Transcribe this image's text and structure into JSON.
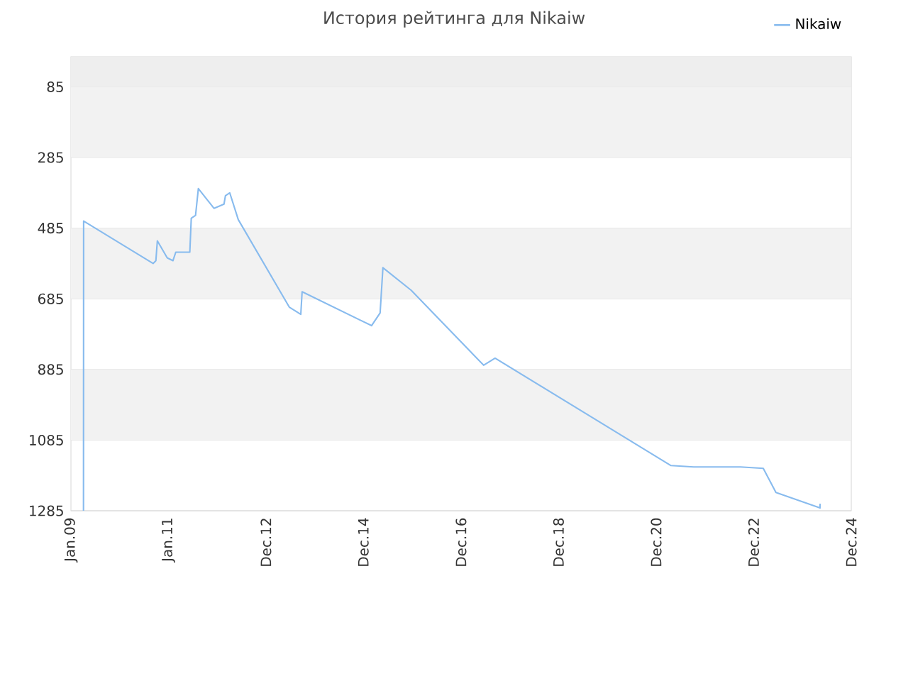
{
  "chart_data": {
    "type": "line",
    "title": "История рейтинга для Nikaiw",
    "x": [
      "2009-04-05",
      "2009-04-06",
      "2010-09-08",
      "2010-09-29",
      "2010-10-10",
      "2010-12-23",
      "2011-02-04",
      "2011-02-25",
      "2011-06-10",
      "2011-06-21",
      "2011-07-23",
      "2011-08-13",
      "2011-12-08",
      "2012-02-21",
      "2012-03-03",
      "2012-04-04",
      "2012-06-07",
      "2013-06-25",
      "2013-09-18",
      "2013-09-28",
      "2015-03-02",
      "2015-05-05",
      "2015-05-26",
      "2015-12-24",
      "2017-06-18",
      "2017-09-12",
      "2021-04-21",
      "2021-10-08",
      "2022-09-24",
      "2023-03-13",
      "2023-06-16",
      "2024-05-11",
      "2024-05-12"
    ],
    "series": [
      {
        "name": "Nikaiw",
        "color": "#88bbee",
        "values": [
          1285,
          465,
          585,
          577,
          521,
          569,
          577,
          553,
          553,
          457,
          449,
          373,
          429,
          417,
          393,
          385,
          461,
          709,
          729,
          665,
          761,
          725,
          597,
          661,
          873,
          853,
          1157,
          1161,
          1161,
          1165,
          1233,
          1277,
          1265
        ]
      }
    ],
    "xlim": [
      "2009-01-01",
      "2024-12-31"
    ],
    "xticks": [
      {
        "value": "2009-01-01",
        "label": "Jan.09"
      },
      {
        "value": "2011-01-01",
        "label": "Jan.11"
      },
      {
        "value": "2012-12-31",
        "label": "Dec.12"
      },
      {
        "value": "2014-12-31",
        "label": "Dec.14"
      },
      {
        "value": "2016-12-31",
        "label": "Dec.16"
      },
      {
        "value": "2018-12-31",
        "label": "Dec.18"
      },
      {
        "value": "2020-12-31",
        "label": "Dec.20"
      },
      {
        "value": "2022-12-31",
        "label": "Dec.22"
      },
      {
        "value": "2024-12-31",
        "label": "Dec.24"
      }
    ],
    "ylim": [
      1285,
      0
    ],
    "yticks": [
      85,
      285,
      485,
      685,
      885,
      1085,
      1285
    ],
    "bands": [
      {
        "axis": "y",
        "from": 0,
        "to": 85,
        "color": "#eeeeee"
      },
      {
        "axis": "y",
        "from": 85,
        "to": 285,
        "color": "#f2f2f2"
      },
      {
        "axis": "y",
        "from": 485,
        "to": 685,
        "color": "#f2f2f2"
      },
      {
        "axis": "y",
        "from": 885,
        "to": 1085,
        "color": "#f2f2f2"
      }
    ],
    "grid": "y",
    "legend": "top right",
    "marker": "none",
    "line_style": "solid"
  }
}
